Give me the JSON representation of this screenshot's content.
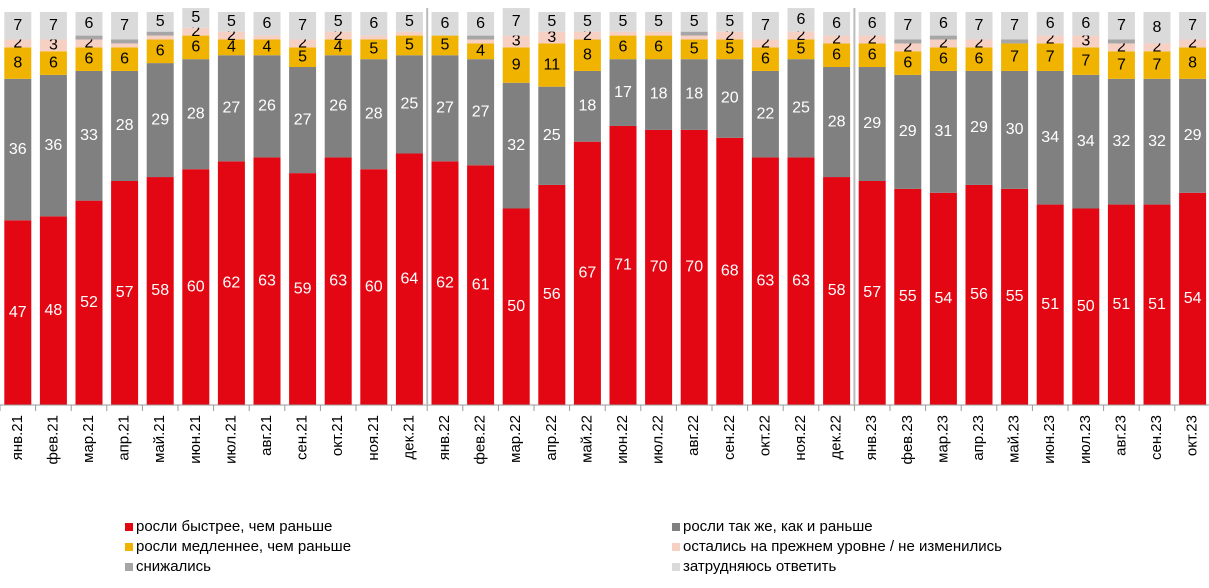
{
  "chart_data": {
    "type": "stacked_bar",
    "categories": [
      "янв.21",
      "фев.21",
      "мар.21",
      "апр.21",
      "май.21",
      "июн.21",
      "июл.21",
      "авг.21",
      "сен.21",
      "окт.21",
      "ноя.21",
      "дек.21",
      "янв.22",
      "фев.22",
      "мар.22",
      "апр.22",
      "май.22",
      "июн.22",
      "июл.22",
      "авг.22",
      "сен.22",
      "окт.22",
      "ноя.22",
      "дек.22",
      "янв.23",
      "фев.23",
      "мар.23",
      "апр.23",
      "май.23",
      "июн.23",
      "июл.23",
      "авг.23",
      "сен.23",
      "окт.23"
    ],
    "ylim": [
      0,
      100
    ],
    "series": [
      {
        "name": "росли быстрее, чем раньше",
        "color": "#e30613",
        "values": [
          47,
          48,
          52,
          57,
          58,
          60,
          62,
          63,
          59,
          63,
          60,
          64,
          62,
          61,
          50,
          56,
          67,
          71,
          70,
          70,
          68,
          63,
          63,
          58,
          57,
          55,
          54,
          56,
          55,
          51,
          50,
          51,
          51,
          54
        ]
      },
      {
        "name": "росли так же, как и раньше",
        "color": "#808080",
        "values": [
          36,
          36,
          33,
          28,
          29,
          28,
          27,
          26,
          27,
          26,
          28,
          25,
          27,
          27,
          32,
          25,
          18,
          17,
          18,
          18,
          20,
          22,
          25,
          28,
          29,
          29,
          31,
          29,
          30,
          34,
          34,
          32,
          32,
          29
        ]
      },
      {
        "name": "росли медленнее, чем раньше",
        "color": "#f0b400",
        "values": [
          8,
          6,
          6,
          6,
          6,
          6,
          4,
          4,
          5,
          4,
          5,
          5,
          5,
          4,
          9,
          11,
          8,
          6,
          6,
          5,
          5,
          6,
          5,
          6,
          6,
          6,
          6,
          6,
          7,
          7,
          7,
          7,
          7,
          8
        ]
      },
      {
        "name": "остались на прежнем уровне / не изменились",
        "color": "#f7d0c4",
        "values": [
          2,
          3,
          2,
          1,
          1,
          2,
          2,
          1,
          2,
          2,
          1,
          1,
          0,
          1,
          3,
          3,
          2,
          1,
          1,
          1,
          2,
          2,
          2,
          2,
          2,
          2,
          2,
          2,
          0,
          2,
          3,
          2,
          2,
          2
        ]
      },
      {
        "name": "снижались",
        "color": "#a6a6a6",
        "values": [
          0,
          0,
          1,
          1,
          1,
          0,
          0,
          0,
          0,
          0,
          0,
          0,
          0,
          1,
          0,
          0,
          0,
          0,
          0,
          1,
          0,
          0,
          0,
          0,
          0,
          1,
          1,
          0,
          1,
          0,
          0,
          1,
          0,
          0
        ]
      },
      {
        "name": "затрудняюсь ответить",
        "color": "#dadada",
        "values": [
          7,
          7,
          6,
          7,
          5,
          5,
          5,
          6,
          7,
          5,
          6,
          5,
          6,
          6,
          7,
          5,
          5,
          5,
          5,
          5,
          5,
          7,
          6,
          6,
          6,
          7,
          6,
          7,
          7,
          6,
          6,
          7,
          8,
          7
        ]
      }
    ]
  }
}
